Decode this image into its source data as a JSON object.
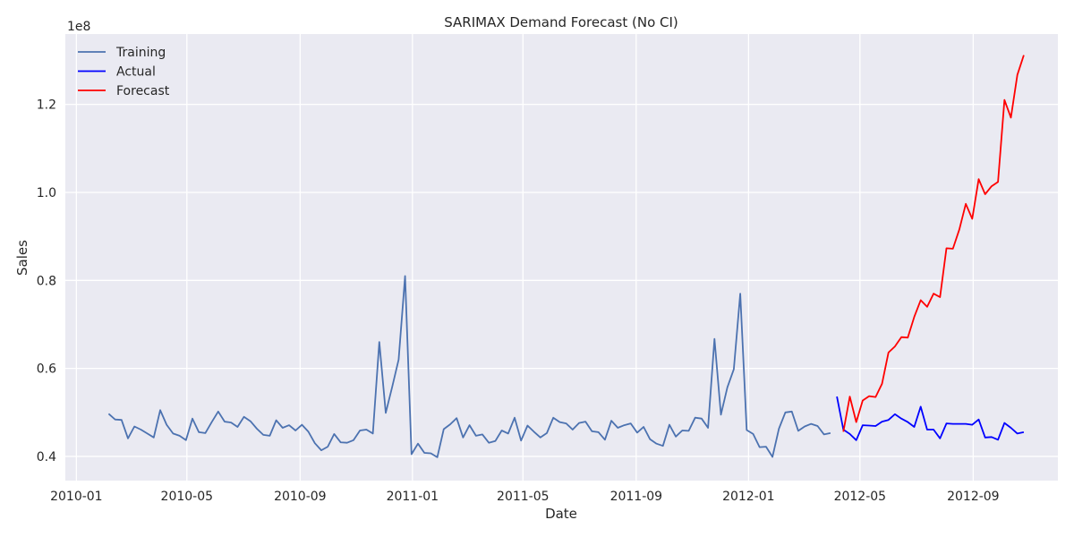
{
  "chart_data": {
    "type": "line",
    "title": "SARIMAX Demand Forecast (No CI)",
    "xlabel": "Date",
    "ylabel": "Sales",
    "y_offset_label": "1e8",
    "y_scale": 100000000,
    "ylim": [
      0.345,
      1.36
    ],
    "xlim": [
      "2009-12-20",
      "2012-12-02"
    ],
    "grid": true,
    "background_color": "#eaeaf2",
    "legend_position": "top-left",
    "x_ticks": [
      {
        "date": "2010-01-01",
        "label": "2010-01"
      },
      {
        "date": "2010-05-01",
        "label": "2010-05"
      },
      {
        "date": "2010-09-01",
        "label": "2010-09"
      },
      {
        "date": "2011-01-01",
        "label": "2011-01"
      },
      {
        "date": "2011-05-01",
        "label": "2011-05"
      },
      {
        "date": "2011-09-01",
        "label": "2011-09"
      },
      {
        "date": "2012-01-01",
        "label": "2012-01"
      },
      {
        "date": "2012-05-01",
        "label": "2012-05"
      },
      {
        "date": "2012-09-01",
        "label": "2012-09"
      }
    ],
    "y_ticks": [
      {
        "value": 0.4,
        "label": "0.4"
      },
      {
        "value": 0.6,
        "label": "0.6"
      },
      {
        "value": 0.8,
        "label": "0.8"
      },
      {
        "value": 1.0,
        "label": "1.0"
      },
      {
        "value": 1.2,
        "label": "1.2"
      }
    ],
    "series": [
      {
        "name": "Training",
        "color": "#4c72b0",
        "start_date": "2010-02-05",
        "step_days": 7,
        "values": [
          0.497,
          0.484,
          0.483,
          0.441,
          0.468,
          0.461,
          0.452,
          0.443,
          0.505,
          0.472,
          0.452,
          0.447,
          0.437,
          0.486,
          0.455,
          0.453,
          0.478,
          0.502,
          0.479,
          0.477,
          0.467,
          0.49,
          0.48,
          0.463,
          0.449,
          0.447,
          0.482,
          0.465,
          0.471,
          0.459,
          0.472,
          0.456,
          0.43,
          0.414,
          0.422,
          0.451,
          0.432,
          0.431,
          0.437,
          0.459,
          0.461,
          0.452,
          0.66,
          0.499,
          0.558,
          0.62,
          0.81,
          0.405,
          0.429,
          0.408,
          0.407,
          0.398,
          0.462,
          0.473,
          0.487,
          0.443,
          0.471,
          0.447,
          0.45,
          0.431,
          0.435,
          0.459,
          0.452,
          0.488,
          0.436,
          0.47,
          0.456,
          0.443,
          0.453,
          0.488,
          0.478,
          0.475,
          0.461,
          0.476,
          0.479,
          0.457,
          0.455,
          0.438,
          0.481,
          0.465,
          0.471,
          0.475,
          0.454,
          0.467,
          0.439,
          0.429,
          0.424,
          0.472,
          0.445,
          0.459,
          0.458,
          0.488,
          0.486,
          0.465,
          0.667,
          0.495,
          0.557,
          0.598,
          0.77,
          0.46,
          0.451,
          0.421,
          0.422,
          0.399,
          0.463,
          0.5,
          0.502,
          0.458,
          0.468,
          0.474,
          0.469,
          0.45,
          0.453
        ]
      },
      {
        "name": "Actual",
        "color": "#0000ff",
        "start_date": "2012-04-06",
        "step_days": 7,
        "values": [
          0.536,
          0.461,
          0.451,
          0.437,
          0.471,
          0.47,
          0.469,
          0.479,
          0.483,
          0.496,
          0.486,
          0.478,
          0.467,
          0.513,
          0.461,
          0.461,
          0.441,
          0.475,
          0.474,
          0.474,
          0.474,
          0.472,
          0.484,
          0.443,
          0.444,
          0.438,
          0.476,
          0.465,
          0.452,
          0.455
        ]
      },
      {
        "name": "Forecast",
        "color": "#ff0000",
        "start_date": "2012-04-13",
        "step_days": 7,
        "values": [
          0.456,
          0.536,
          0.478,
          0.527,
          0.537,
          0.535,
          0.565,
          0.636,
          0.65,
          0.671,
          0.67,
          0.717,
          0.755,
          0.74,
          0.77,
          0.762,
          0.873,
          0.872,
          0.916,
          0.974,
          0.94,
          1.03,
          0.996,
          1.014,
          1.024,
          1.21,
          1.17,
          1.267,
          1.312
        ]
      }
    ]
  }
}
